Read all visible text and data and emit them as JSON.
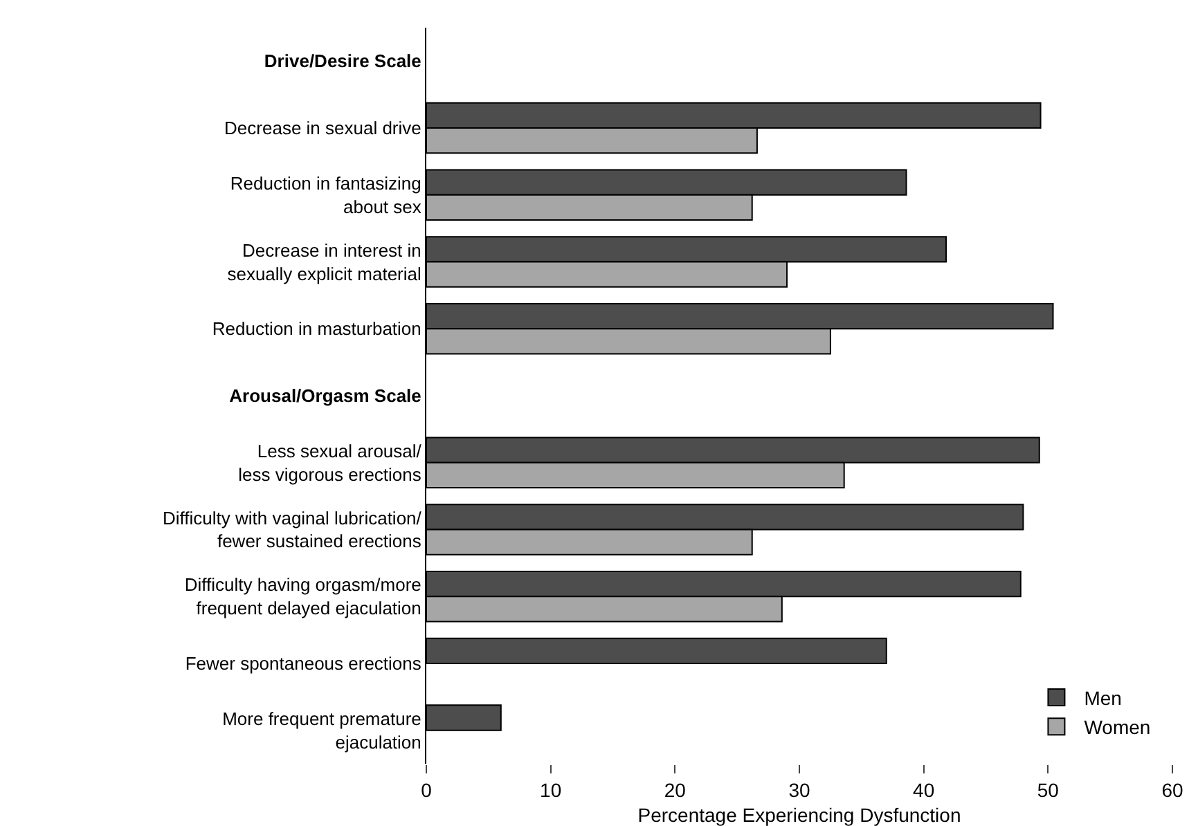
{
  "chart_data": {
    "type": "bar",
    "orientation": "horizontal",
    "categories": [
      "Drive/Desire Scale",
      "Decrease in sexual drive",
      "Reduction in fantasizing\nabout sex",
      "Decrease in interest in\nsexually explicit material",
      "Reduction in masturbation",
      "Arousal/Orgasm Scale",
      "Less sexual arousal/\nless vigorous erections",
      "Difficulty with vaginal lubrication/\nfewer sustained erections",
      "Difficulty having orgasm/more\nfrequent delayed ejaculation",
      "Fewer spontaneous erections",
      "More frequent premature\nejaculation"
    ],
    "series": [
      {
        "name": "Men",
        "color": "#4d4d4d",
        "values": [
          null,
          49.4,
          38.6,
          41.8,
          50.4,
          null,
          49.3,
          48.0,
          47.8,
          37.0,
          6.0
        ]
      },
      {
        "name": "Women",
        "color": "#a6a6a6",
        "values": [
          null,
          26.6,
          26.2,
          29.0,
          32.5,
          null,
          33.6,
          26.2,
          28.6,
          null,
          null
        ]
      }
    ],
    "xlabel": "Percentage Experiencing Dysfunction",
    "xlim": [
      0,
      60
    ],
    "xticks": [
      0,
      10,
      20,
      30,
      40,
      50,
      60
    ],
    "grid": false,
    "legend": "bottom right"
  }
}
